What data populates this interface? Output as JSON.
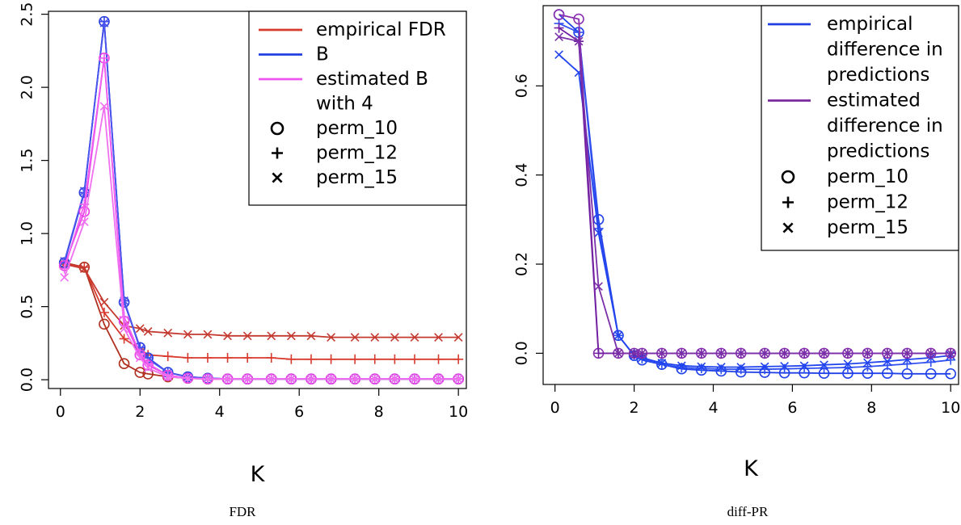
{
  "chart_data": [
    {
      "type": "line",
      "caption": "FDR",
      "xlabel": "K",
      "ylabel": "",
      "xlim": [
        -0.3,
        10.2
      ],
      "ylim": [
        -0.06,
        2.52
      ],
      "xticks": [
        0,
        2,
        4,
        6,
        8,
        10
      ],
      "yticks": [
        0.0,
        0.5,
        1.0,
        1.5,
        2.0,
        2.5
      ],
      "ytick_labels": [
        "0.0",
        "0.5",
        "1.0",
        "1.5",
        "2.0",
        "2.5"
      ],
      "grid": false,
      "legend_position": "top-right",
      "legend": [
        {
          "label": "empirical FDR",
          "color": "#d93a2e",
          "kind": "line"
        },
        {
          "label": "B",
          "color": "#1f3fe0",
          "kind": "line"
        },
        {
          "label": "estimated B",
          "color": "#ee55ee",
          "kind": "line"
        },
        {
          "label": "with 4",
          "color": "",
          "kind": "text"
        },
        {
          "label": "perm_10",
          "marker": "circle",
          "kind": "marker"
        },
        {
          "label": "perm_12",
          "marker": "plus",
          "kind": "marker"
        },
        {
          "label": "perm_15",
          "marker": "cross",
          "kind": "marker"
        }
      ],
      "x": [
        0.1,
        0.6,
        1.1,
        1.6,
        2.0,
        2.2,
        2.7,
        3.2,
        3.7,
        4.2,
        4.7,
        5.3,
        5.8,
        6.3,
        6.8,
        7.4,
        7.9,
        8.4,
        8.9,
        9.5,
        10.0
      ],
      "series": [
        {
          "name": "empirical FDR",
          "marker": "circle",
          "color": "#b03020",
          "values": [
            0.8,
            0.77,
            0.38,
            0.11,
            0.05,
            0.04,
            0.02,
            0.01,
            0.005,
            0.005,
            0.005,
            0.005,
            0.005,
            0.005,
            0.005,
            0.005,
            0.005,
            0.005,
            0.005,
            0.005,
            0.005
          ]
        },
        {
          "name": "empirical FDR",
          "marker": "plus",
          "color": "#d93a2e",
          "values": [
            0.79,
            0.77,
            0.46,
            0.28,
            0.21,
            0.17,
            0.16,
            0.15,
            0.15,
            0.15,
            0.15,
            0.15,
            0.14,
            0.14,
            0.14,
            0.14,
            0.14,
            0.14,
            0.14,
            0.14,
            0.14
          ]
        },
        {
          "name": "empirical FDR",
          "marker": "cross",
          "color": "#c43a30",
          "values": [
            0.79,
            0.76,
            0.53,
            0.37,
            0.35,
            0.33,
            0.32,
            0.31,
            0.31,
            0.3,
            0.3,
            0.3,
            0.3,
            0.3,
            0.29,
            0.29,
            0.29,
            0.29,
            0.29,
            0.29,
            0.29
          ]
        },
        {
          "name": "B",
          "marker": "circle",
          "color": "#2a3fe0",
          "values": [
            0.8,
            1.28,
            2.45,
            0.53,
            0.22,
            0.15,
            0.05,
            0.02,
            0.01,
            0.005,
            0.005,
            0.005,
            0.005,
            0.005,
            0.005,
            0.005,
            0.005,
            0.005,
            0.005,
            0.005,
            0.005
          ]
        },
        {
          "name": "B",
          "marker": "plus",
          "color": "#3a44e8",
          "values": [
            0.8,
            1.28,
            2.45,
            0.54,
            0.22,
            0.15,
            0.05,
            0.02,
            0.01,
            0.005,
            0.005,
            0.005,
            0.005,
            0.005,
            0.005,
            0.005,
            0.005,
            0.005,
            0.005,
            0.005,
            0.005
          ]
        },
        {
          "name": "B",
          "marker": "cross",
          "color": "#4a55ee",
          "values": [
            0.81,
            1.29,
            2.44,
            0.54,
            0.21,
            0.14,
            0.05,
            0.02,
            0.01,
            0.005,
            0.005,
            0.005,
            0.005,
            0.005,
            0.005,
            0.005,
            0.005,
            0.005,
            0.005,
            0.005,
            0.005
          ]
        },
        {
          "name": "estimated B",
          "marker": "circle",
          "color": "#e840e8",
          "values": [
            0.78,
            1.15,
            2.2,
            0.4,
            0.17,
            0.1,
            0.03,
            0.01,
            0.005,
            0.005,
            0.005,
            0.005,
            0.005,
            0.005,
            0.005,
            0.005,
            0.005,
            0.005,
            0.005,
            0.005,
            0.005
          ]
        },
        {
          "name": "estimated B",
          "marker": "plus",
          "color": "#f060f0",
          "values": [
            0.76,
            1.2,
            2.2,
            0.43,
            0.18,
            0.11,
            0.03,
            0.01,
            0.005,
            0.005,
            0.005,
            0.005,
            0.005,
            0.005,
            0.005,
            0.005,
            0.005,
            0.005,
            0.005,
            0.005,
            0.005
          ]
        },
        {
          "name": "estimated B",
          "marker": "cross",
          "color": "#f070f0",
          "values": [
            0.7,
            1.08,
            1.87,
            0.35,
            0.15,
            0.08,
            0.02,
            0.01,
            0.005,
            0.005,
            0.005,
            0.005,
            0.005,
            0.005,
            0.005,
            0.005,
            0.005,
            0.005,
            0.005,
            0.005,
            0.005
          ]
        }
      ]
    },
    {
      "type": "line",
      "caption": "diff-PR",
      "xlabel": "K",
      "ylabel": "",
      "xlim": [
        -0.3,
        10.2
      ],
      "ylim": [
        -0.07,
        0.78
      ],
      "xticks": [
        0,
        2,
        4,
        6,
        8,
        10
      ],
      "yticks": [
        0.0,
        0.2,
        0.4,
        0.6
      ],
      "ytick_labels": [
        "0.0",
        "0.2",
        "0.4",
        "0.6"
      ],
      "grid": false,
      "legend_position": "top-right",
      "legend": [
        {
          "label": "empirical",
          "color": "#1f3fe0",
          "kind": "line"
        },
        {
          "label": "difference in",
          "color": "",
          "kind": "text"
        },
        {
          "label": "predictions",
          "color": "",
          "kind": "text"
        },
        {
          "label": "estimated",
          "color": "#7a2aa0",
          "kind": "line"
        },
        {
          "label": "difference in",
          "color": "",
          "kind": "text"
        },
        {
          "label": "predictions",
          "color": "",
          "kind": "text"
        },
        {
          "label": "perm_10",
          "marker": "circle",
          "kind": "marker"
        },
        {
          "label": "perm_12",
          "marker": "plus",
          "kind": "marker"
        },
        {
          "label": "perm_15",
          "marker": "cross",
          "kind": "marker"
        }
      ],
      "x": [
        0.1,
        0.6,
        1.1,
        1.6,
        2.0,
        2.2,
        2.7,
        3.2,
        3.7,
        4.2,
        4.7,
        5.3,
        5.8,
        6.3,
        6.8,
        7.4,
        7.9,
        8.4,
        8.9,
        9.5,
        10.0
      ],
      "series": [
        {
          "name": "empirical difference in predictions",
          "marker": "circle",
          "color": "#2040e8",
          "values": [
            0.76,
            0.72,
            0.3,
            0.04,
            -0.005,
            -0.015,
            -0.025,
            -0.035,
            -0.038,
            -0.04,
            -0.042,
            -0.043,
            -0.044,
            -0.044,
            -0.045,
            -0.045,
            -0.045,
            -0.045,
            -0.046,
            -0.046,
            -0.046
          ]
        },
        {
          "name": "empirical difference in predictions",
          "marker": "plus",
          "color": "#3050f0",
          "values": [
            0.74,
            0.72,
            0.28,
            0.04,
            -0.005,
            -0.012,
            -0.025,
            -0.032,
            -0.034,
            -0.036,
            -0.036,
            -0.036,
            -0.035,
            -0.034,
            -0.033,
            -0.032,
            -0.03,
            -0.027,
            -0.024,
            -0.02,
            -0.015
          ]
        },
        {
          "name": "empirical difference in predictions",
          "marker": "cross",
          "color": "#2244ee",
          "values": [
            0.67,
            0.63,
            0.27,
            0.04,
            -0.005,
            -0.01,
            -0.022,
            -0.028,
            -0.03,
            -0.031,
            -0.031,
            -0.03,
            -0.029,
            -0.028,
            -0.026,
            -0.024,
            -0.021,
            -0.018,
            -0.014,
            -0.01,
            -0.005
          ]
        },
        {
          "name": "estimated difference in predictions",
          "marker": "circle",
          "color": "#8a30b0",
          "values": [
            0.76,
            0.75,
            0.0,
            0.0,
            0.0,
            0.0,
            0.0,
            0.0,
            0.0,
            0.0,
            0.0,
            0.0,
            0.0,
            0.0,
            0.0,
            0.0,
            0.0,
            0.0,
            0.0,
            0.0,
            0.0
          ]
        },
        {
          "name": "estimated difference in predictions",
          "marker": "plus",
          "color": "#7020a0",
          "values": [
            0.73,
            0.7,
            0.0,
            0.0,
            0.0,
            0.0,
            0.0,
            0.0,
            0.0,
            0.0,
            0.0,
            0.0,
            0.0,
            0.0,
            0.0,
            0.0,
            0.0,
            0.0,
            0.0,
            0.0,
            0.0
          ]
        },
        {
          "name": "estimated difference in predictions",
          "marker": "cross",
          "color": "#7a30a8",
          "values": [
            0.71,
            0.7,
            0.15,
            0.0,
            0.0,
            0.0,
            0.0,
            0.0,
            0.0,
            0.0,
            0.0,
            0.0,
            0.0,
            0.0,
            0.0,
            0.0,
            0.0,
            0.0,
            0.0,
            0.0,
            0.0
          ]
        }
      ]
    }
  ]
}
